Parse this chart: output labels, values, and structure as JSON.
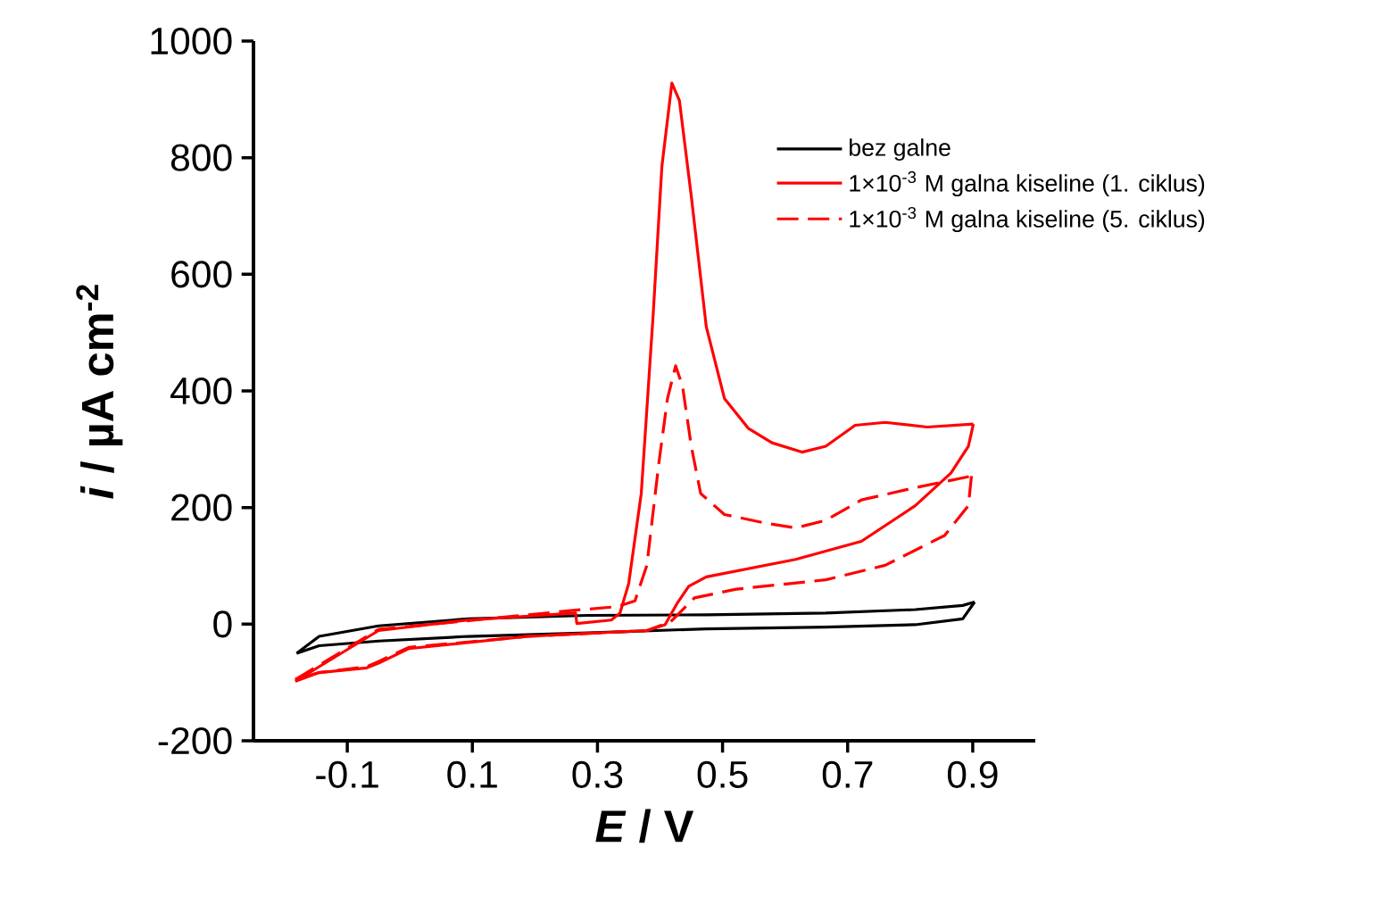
{
  "chart_data": {
    "type": "line",
    "xlabel": "*E* / V",
    "ylabel": "*i* / µA cm$^{-2}$",
    "xlim": [
      -0.25,
      1.0
    ],
    "xticks": [
      -0.1,
      0.1,
      0.3,
      0.5,
      0.7,
      0.9
    ],
    "ylim": [
      -200,
      1000
    ],
    "yticks": [
      -200,
      0,
      200,
      400,
      600,
      800,
      1000
    ],
    "grid": false,
    "legend": "top right",
    "marker": "none",
    "series": [
      {
        "name": "bez galne",
        "color": "#000000",
        "line_style": "solid",
        "x": [
          -0.181,
          -0.145,
          -0.05,
          0.093,
          0.284,
          0.474,
          0.665,
          0.808,
          0.884,
          0.903
        ],
        "values": [
          -50,
          -21,
          -3,
          9,
          15,
          16,
          19,
          25,
          32,
          38
        ]
      },
      {
        "color": "#000000",
        "line_style": "solid",
        "x": [
          0.903,
          0.884,
          0.808,
          0.665,
          0.474,
          0.284,
          0.093,
          -0.05,
          -0.145,
          -0.181
        ],
        "values": [
          38,
          9,
          -1,
          -5,
          -8,
          -15,
          -21,
          -29,
          -37,
          -50
        ]
      },
      {
        "name": "1×10$^{-3}$ M galna kiseline (1. ciklus)",
        "color": "#ff0000",
        "line_style": "solid",
        "x": [
          -0.183,
          -0.145,
          -0.05,
          0.093,
          0.265,
          0.267,
          0.322,
          0.336,
          0.35,
          0.37,
          0.389,
          0.403,
          0.419,
          0.431,
          0.45,
          0.474,
          0.503,
          0.541,
          0.579,
          0.627,
          0.665,
          0.712,
          0.76,
          0.827,
          0.901
        ],
        "values": [
          -98,
          -73,
          -11,
          7,
          19,
          1,
          7,
          19,
          70,
          224,
          530,
          785,
          928,
          898,
          734,
          510,
          387,
          336,
          311,
          295,
          305,
          341,
          346,
          338,
          343
        ]
      },
      {
        "color": "#ff0000",
        "line_style": "solid",
        "x": [
          0.901,
          0.893,
          0.865,
          0.808,
          0.722,
          0.617,
          0.474,
          0.446,
          0.427,
          0.408,
          0.379,
          0.189,
          -0.002,
          -0.05,
          -0.069,
          -0.145,
          -0.183
        ],
        "values": [
          343,
          305,
          259,
          203,
          142,
          111,
          81,
          65,
          35,
          -1,
          -11,
          -21,
          -42,
          -67,
          -75,
          -83,
          -98
        ]
      },
      {
        "name": "1×10$^{-3}$ M galna kiseline (5. ciklus)",
        "color": "#ff0000",
        "line_style": "dashed",
        "x": [
          -0.183,
          -0.05,
          0.265,
          0.331,
          0.36,
          0.379,
          0.398,
          0.412,
          0.425,
          0.436,
          0.45,
          0.465,
          0.503,
          0.57,
          0.617,
          0.665,
          0.722,
          0.808,
          0.898
        ],
        "values": [
          -95,
          -9,
          24,
          30,
          40,
          101,
          275,
          387,
          443,
          408,
          305,
          224,
          188,
          173,
          165,
          178,
          213,
          234,
          254
        ]
      },
      {
        "color": "#ff0000",
        "line_style": "dashed",
        "x": [
          0.898,
          0.893,
          0.855,
          0.76,
          0.665,
          0.522,
          0.455,
          0.431,
          0.417,
          0.379,
          0.189,
          -0.002,
          -0.05,
          -0.069,
          -0.145,
          -0.183
        ],
        "values": [
          254,
          203,
          152,
          101,
          76,
          60,
          45,
          19,
          4,
          -11,
          -21,
          -40,
          -64,
          -73,
          -83,
          -95
        ]
      }
    ]
  }
}
